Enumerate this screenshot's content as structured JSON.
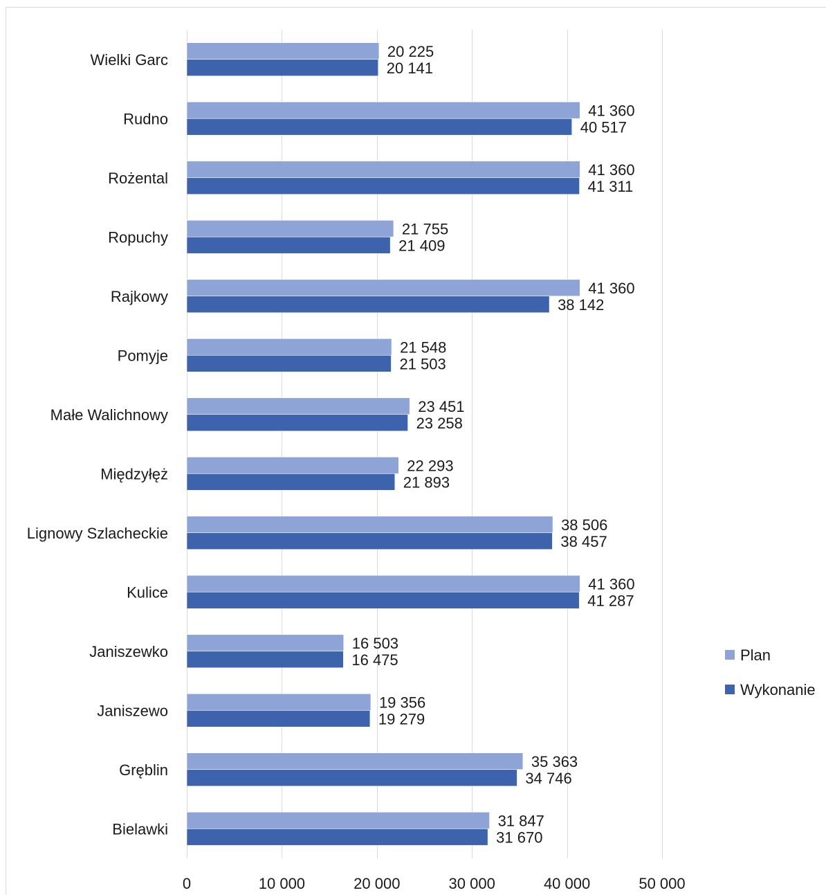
{
  "chart_data": {
    "type": "bar",
    "orientation": "horizontal",
    "categories": [
      "Wielki Garc",
      "Rudno",
      "Rożental",
      "Ropuchy",
      "Rajkowy",
      "Pomyje",
      "Małe Walichnowy",
      "Międzyłęż",
      "Lignowy Szlacheckie",
      "Kulice",
      "Janiszewko",
      "Janiszewo",
      "Gręblin",
      "Bielawki"
    ],
    "series": [
      {
        "name": "Plan",
        "color": "#8ea3d6",
        "values": [
          20225,
          41360,
          41360,
          21755,
          41360,
          21548,
          23451,
          22293,
          38506,
          41360,
          16503,
          19356,
          35363,
          31847
        ],
        "labels": [
          "20 225",
          "41 360",
          "41 360",
          "21 755",
          "41 360",
          "21 548",
          "23 451",
          "22 293",
          "38 506",
          "41 360",
          "16 503",
          "19 356",
          "35 363",
          "31 847"
        ]
      },
      {
        "name": "Wykonanie",
        "color": "#3d63ad",
        "values": [
          20141,
          40517,
          41311,
          21409,
          38142,
          21503,
          23258,
          21893,
          38457,
          41287,
          16475,
          19279,
          34746,
          31670
        ],
        "labels": [
          "20 141",
          "40 517",
          "41 311",
          "21 409",
          "38 142",
          "21 503",
          "23 258",
          "21 893",
          "38 457",
          "41 287",
          "16 475",
          "19 279",
          "34 746",
          "31 670"
        ]
      }
    ],
    "xlim": [
      0,
      50000
    ],
    "x_ticks": [
      0,
      10000,
      20000,
      30000,
      40000,
      50000
    ],
    "x_tick_labels": [
      "0",
      "10 000",
      "20 000",
      "30 000",
      "40 000",
      "50 000"
    ],
    "title": "",
    "xlabel": "",
    "ylabel": "",
    "grid": "vertical",
    "legend_position": "right"
  }
}
